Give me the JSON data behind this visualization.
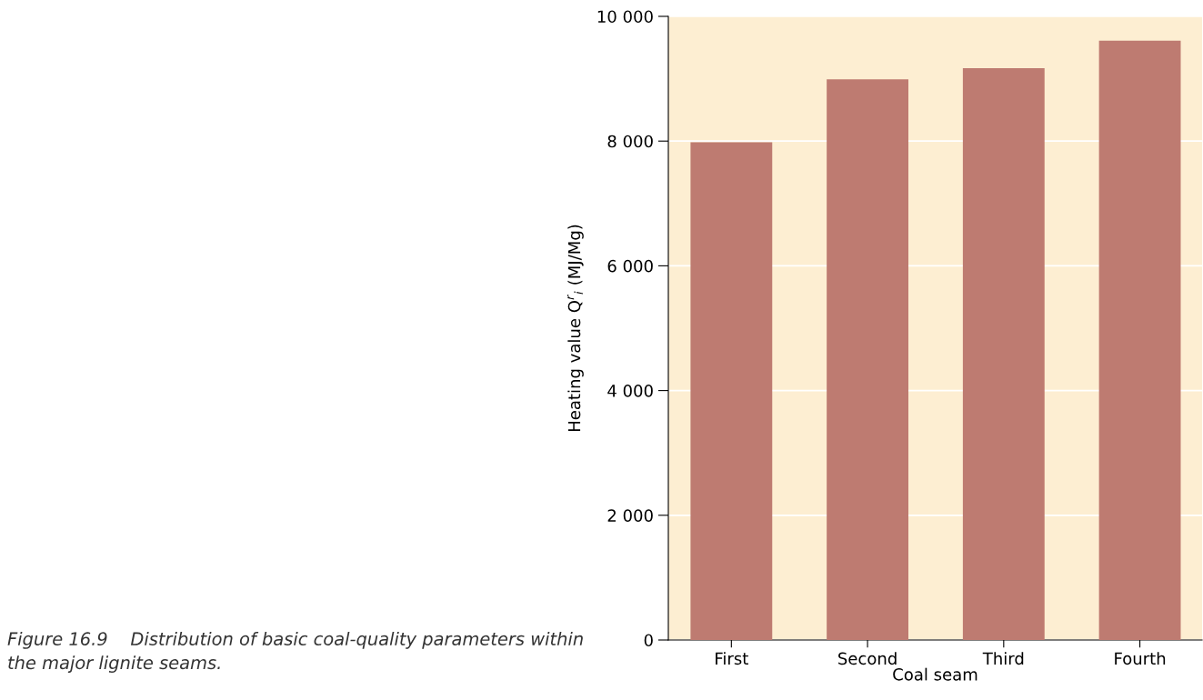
{
  "chart_data": {
    "type": "bar",
    "xlabel": "Coal seam",
    "ylabel": "Heating value Q$^{r}$$_{i}$ (MJ/Mg)",
    "categories": [
      "First",
      "Second",
      "Third",
      "Fourth"
    ],
    "values": [
      7980,
      8990,
      9170,
      9610
    ],
    "color": "#be7b71",
    "ylim": [
      0,
      10000
    ],
    "yticks": [
      {
        "value": 0,
        "label": "0"
      },
      {
        "value": 2000,
        "label": "2 000"
      },
      {
        "value": 4000,
        "label": "4 000"
      },
      {
        "value": 6000,
        "label": "6 000"
      },
      {
        "value": 8000,
        "label": "8 000"
      },
      {
        "value": 10000,
        "label": "10 000"
      }
    ],
    "grid": "y",
    "bands": [
      {
        "axis": "y",
        "from": 0,
        "to": 10000,
        "color": "#fdeed2"
      }
    ],
    "annotations": [
      "Figure 16.9    Distribution of basic coal-quality parameters within the major lignite seams."
    ]
  }
}
